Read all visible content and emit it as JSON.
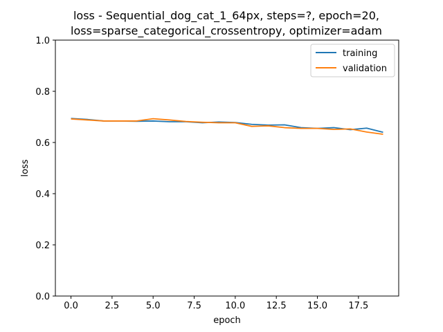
{
  "chart_data": {
    "type": "line",
    "title_line1": "loss - Sequential_dog_cat_1_64px, steps=?, epoch=20,",
    "title_line2": "loss=sparse_categorical_crossentropy, optimizer=adam",
    "xlabel": "epoch",
    "ylabel": "loss",
    "xlim": [
      -0.95,
      19.95
    ],
    "ylim": [
      0.0,
      1.0
    ],
    "xticks": [
      0.0,
      2.5,
      5.0,
      7.5,
      10.0,
      12.5,
      15.0,
      17.5
    ],
    "xtick_labels": [
      "0.0",
      "2.5",
      "5.0",
      "7.5",
      "10.0",
      "12.5",
      "15.0",
      "17.5"
    ],
    "yticks": [
      0.0,
      0.2,
      0.4,
      0.6,
      0.8,
      1.0
    ],
    "ytick_labels": [
      "0.0",
      "0.2",
      "0.4",
      "0.6",
      "0.8",
      "1.0"
    ],
    "grid": false,
    "legend_position": "top-right",
    "x": [
      0,
      1,
      2,
      3,
      4,
      5,
      6,
      7,
      8,
      9,
      10,
      11,
      12,
      13,
      14,
      15,
      16,
      17,
      18,
      19
    ],
    "series": [
      {
        "name": "training",
        "color": "#1f77b4",
        "values": [
          0.694,
          0.69,
          0.684,
          0.684,
          0.683,
          0.684,
          0.681,
          0.681,
          0.677,
          0.68,
          0.678,
          0.671,
          0.668,
          0.669,
          0.658,
          0.655,
          0.658,
          0.65,
          0.656,
          0.64
        ]
      },
      {
        "name": "validation",
        "color": "#ff7f0e",
        "values": [
          0.692,
          0.688,
          0.684,
          0.684,
          0.684,
          0.693,
          0.688,
          0.682,
          0.679,
          0.677,
          0.677,
          0.663,
          0.665,
          0.658,
          0.655,
          0.655,
          0.651,
          0.653,
          0.641,
          0.632
        ]
      }
    ]
  }
}
